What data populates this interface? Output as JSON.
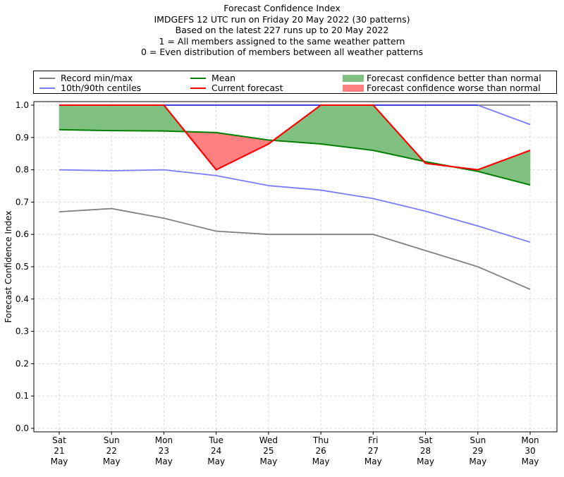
{
  "chart_data": {
    "type": "line",
    "title": "Forecast Confidence Index",
    "subtitle_lines": [
      "IMDGEFS 12 UTC run on Friday 20 May 2022 (30 patterns)",
      "Based on the latest 227 runs up to 20 May 2022",
      "1 = All members assigned to the same weather pattern",
      "0 = Even distribution of members between all weather patterns"
    ],
    "xlabel": "",
    "ylabel": "Forecast Confidence Index",
    "ylim": [
      0.0,
      1.0
    ],
    "yticks": [
      "0.0",
      "0.1",
      "0.2",
      "0.3",
      "0.4",
      "0.5",
      "0.6",
      "0.7",
      "0.8",
      "0.9",
      "1.0"
    ],
    "grid": true,
    "legend_position": "top",
    "categories": [
      [
        "Sat",
        "21",
        "May"
      ],
      [
        "Sun",
        "22",
        "May"
      ],
      [
        "Mon",
        "23",
        "May"
      ],
      [
        "Tue",
        "24",
        "May"
      ],
      [
        "Wed",
        "25",
        "May"
      ],
      [
        "Thu",
        "26",
        "May"
      ],
      [
        "Fri",
        "27",
        "May"
      ],
      [
        "Sat",
        "28",
        "May"
      ],
      [
        "Sun",
        "29",
        "May"
      ],
      [
        "Mon",
        "30",
        "May"
      ]
    ],
    "series": [
      {
        "name": "Record min/max",
        "role": "record_min",
        "color": "#808080",
        "values": [
          0.67,
          0.68,
          0.65,
          0.61,
          0.6,
          0.6,
          0.6,
          0.55,
          0.5,
          0.43
        ]
      },
      {
        "name": "Record min/max",
        "role": "record_max",
        "color": "#808080",
        "values": [
          1.0,
          1.0,
          1.0,
          1.0,
          1.0,
          1.0,
          1.0,
          1.0,
          1.0,
          1.0
        ]
      },
      {
        "name": "10th/90th centiles",
        "role": "p10",
        "color": "#7b7bff",
        "values": [
          0.8,
          0.797,
          0.8,
          0.782,
          0.751,
          0.737,
          0.711,
          0.672,
          0.626,
          0.576
        ]
      },
      {
        "name": "10th/90th centiles",
        "role": "p90",
        "color": "#7b7bff",
        "values": [
          1.0,
          1.0,
          1.0,
          1.0,
          1.0,
          1.0,
          1.0,
          1.0,
          1.0,
          0.94
        ]
      },
      {
        "name": "Mean",
        "role": "mean",
        "color": "#008000",
        "values": [
          0.924,
          0.921,
          0.92,
          0.915,
          0.892,
          0.88,
          0.86,
          0.825,
          0.795,
          0.753
        ]
      },
      {
        "name": "Current forecast",
        "role": "current",
        "color": "#ff0000",
        "values": [
          1.0,
          1.0,
          1.0,
          0.8,
          0.88,
          1.0,
          1.0,
          0.82,
          0.8,
          0.86
        ]
      }
    ],
    "fills": [
      {
        "name": "Forecast confidence better than normal",
        "color": "#80c080"
      },
      {
        "name": "Forecast confidence worse than normal",
        "color": "#ff8080"
      }
    ],
    "legend": [
      {
        "label": "Record min/max",
        "kind": "line",
        "color": "#808080"
      },
      {
        "label": "10th/90th centiles",
        "kind": "line",
        "color": "#7b7bff"
      },
      {
        "label": "Mean",
        "kind": "line",
        "color": "#008000"
      },
      {
        "label": "Current forecast",
        "kind": "line",
        "color": "#ff0000"
      },
      {
        "label": "Forecast confidence better than normal",
        "kind": "patch",
        "color": "#80c080"
      },
      {
        "label": "Forecast confidence worse than normal",
        "kind": "patch",
        "color": "#ff8080"
      }
    ]
  }
}
